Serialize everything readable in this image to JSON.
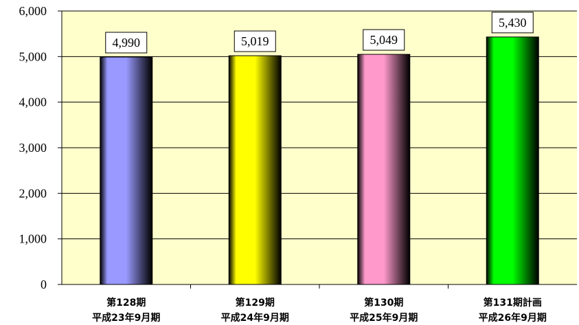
{
  "chart_data": {
    "type": "bar",
    "categories": [
      [
        "第128期",
        "平成23年9月期"
      ],
      [
        "第129期",
        "平成24年9月期"
      ],
      [
        "第130期",
        "平成25年9月期"
      ],
      [
        "第131期計画",
        "平成26年9月期"
      ]
    ],
    "values": [
      4990,
      5019,
      5049,
      5430
    ],
    "data_labels": [
      "4,990",
      "5,019",
      "5,049",
      "5,430"
    ],
    "ylim": [
      0,
      6000
    ],
    "yticks": [
      0,
      1000,
      2000,
      3000,
      4000,
      5000,
      6000
    ],
    "ytick_labels": [
      "0",
      "1,000",
      "2,000",
      "3,000",
      "4,000",
      "5,000",
      "6,000"
    ],
    "grid": true,
    "legend": "none",
    "colors": {
      "plot_background": "#FFFFCC",
      "bars": [
        "#9999FF",
        "#FFFF00",
        "#FF99CC",
        "#00FF00"
      ],
      "gridline": "#000000"
    }
  }
}
